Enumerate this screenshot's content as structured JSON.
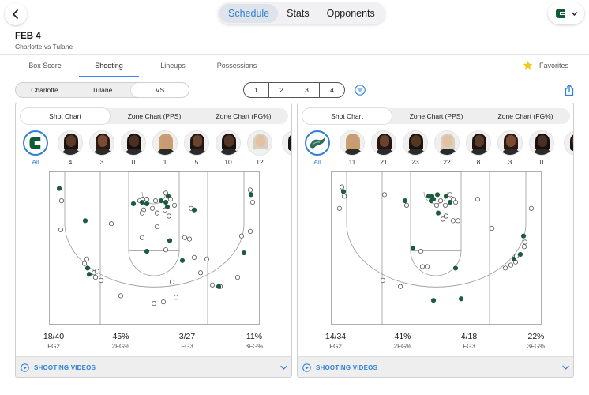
{
  "header": {
    "tabs": [
      {
        "label": "Schedule",
        "active": true
      },
      {
        "label": "Stats",
        "active": false
      },
      {
        "label": "Opponents",
        "active": false
      }
    ],
    "back_icon": "chevron-left-icon",
    "team_logo_icon": "charlotte-logo-icon",
    "team_menu_icon": "chevron-down-icon"
  },
  "game": {
    "date": "FEB 4",
    "matchup": "Charlotte vs Tulane"
  },
  "nav_tabs": [
    {
      "label": "Box Score",
      "active": false
    },
    {
      "label": "Shooting",
      "active": true
    },
    {
      "label": "Lineups",
      "active": false
    },
    {
      "label": "Possessions",
      "active": false
    }
  ],
  "favorites_label": "Favorites",
  "team_toggle": [
    {
      "label": "Charlotte",
      "active": false
    },
    {
      "label": "Tulane",
      "active": false
    },
    {
      "label": "VS",
      "active": true
    }
  ],
  "periods": [
    "1",
    "2",
    "3",
    "4"
  ],
  "colors": {
    "accent": "#2f80d6",
    "made_shot": "#1f5c3f",
    "charlotte_green": "#0f5b36",
    "tulane_green": "#2b6b5a"
  },
  "panels": [
    {
      "team": "Charlotte",
      "chart_tabs": [
        {
          "label": "Shot Chart",
          "active": true
        },
        {
          "label": "Zone Chart (PPS)",
          "active": false
        },
        {
          "label": "Zone Chart (FG%)",
          "active": false
        }
      ],
      "all_label": "All",
      "players": [
        "4",
        "3",
        "0",
        "1",
        "5",
        "10",
        "12"
      ],
      "stats": [
        {
          "value": "18/40",
          "label": "FG2"
        },
        {
          "value": "45%",
          "label": "2FG%"
        },
        {
          "value": "3/27",
          "label": "FG3"
        },
        {
          "value": "11%",
          "label": "3FG%"
        }
      ],
      "videos_label": "SHOOTING VIDEOS",
      "shots": [
        {
          "x": 3,
          "y": 7,
          "made": true
        },
        {
          "x": 6,
          "y": 15,
          "made": false
        },
        {
          "x": 5,
          "y": 34,
          "made": false
        },
        {
          "x": 36,
          "y": 28,
          "made": true
        },
        {
          "x": 69,
          "y": 30,
          "made": false
        },
        {
          "x": 38,
          "y": 53,
          "made": false
        },
        {
          "x": 35,
          "y": 56,
          "made": false
        },
        {
          "x": 39,
          "y": 59,
          "made": true
        },
        {
          "x": 41,
          "y": 63,
          "made": true
        },
        {
          "x": 47,
          "y": 62,
          "made": false
        },
        {
          "x": 51,
          "y": 61,
          "made": false
        },
        {
          "x": 49,
          "y": 65,
          "made": false
        },
        {
          "x": 56,
          "y": 67,
          "made": false
        },
        {
          "x": 81,
          "y": 77,
          "made": false
        },
        {
          "x": 97,
          "y": 17,
          "made": true
        },
        {
          "x": 105,
          "y": 15,
          "made": false
        },
        {
          "x": 109,
          "y": 14,
          "made": false
        },
        {
          "x": 114,
          "y": 14,
          "made": false
        },
        {
          "x": 108,
          "y": 16,
          "made": true
        },
        {
          "x": 114,
          "y": 17,
          "made": true
        },
        {
          "x": 125,
          "y": 15,
          "made": false
        },
        {
          "x": 132,
          "y": 15,
          "made": true
        },
        {
          "x": 138,
          "y": 10,
          "made": false
        },
        {
          "x": 141,
          "y": 12,
          "made": true
        },
        {
          "x": 144,
          "y": 14,
          "made": false
        },
        {
          "x": 138,
          "y": 16,
          "made": true
        },
        {
          "x": 140,
          "y": 19,
          "made": true
        },
        {
          "x": 137,
          "y": 21,
          "made": false
        },
        {
          "x": 149,
          "y": 18,
          "made": false
        },
        {
          "x": 110,
          "y": 21,
          "made": false
        },
        {
          "x": 108,
          "y": 23,
          "made": false
        },
        {
          "x": 121,
          "y": 20,
          "made": false
        },
        {
          "x": 127,
          "y": 23,
          "made": false
        },
        {
          "x": 142,
          "y": 25,
          "made": false
        },
        {
          "x": 108,
          "y": 39,
          "made": false
        },
        {
          "x": 114,
          "y": 48,
          "made": true
        },
        {
          "x": 127,
          "y": 32,
          "made": false
        },
        {
          "x": 143,
          "y": 41,
          "made": true
        },
        {
          "x": 138,
          "y": 47,
          "made": false
        },
        {
          "x": 162,
          "y": 39,
          "made": false
        },
        {
          "x": 168,
          "y": 40,
          "made": false
        },
        {
          "x": 170,
          "y": 20,
          "made": false
        },
        {
          "x": 174,
          "y": 21,
          "made": true
        },
        {
          "x": 159,
          "y": 54,
          "made": true
        },
        {
          "x": 174,
          "y": 52,
          "made": false
        },
        {
          "x": 182,
          "y": 62,
          "made": false
        },
        {
          "x": 190,
          "y": 53,
          "made": false
        },
        {
          "x": 197,
          "y": 70,
          "made": false
        },
        {
          "x": 207,
          "y": 71,
          "made": false
        },
        {
          "x": 205,
          "y": 71,
          "made": true
        },
        {
          "x": 229,
          "y": 65,
          "made": false
        },
        {
          "x": 237,
          "y": 49,
          "made": true
        },
        {
          "x": 245,
          "y": 35,
          "made": false
        },
        {
          "x": 248,
          "y": 16,
          "made": false
        },
        {
          "x": 246,
          "y": 11,
          "made": true
        },
        {
          "x": 245,
          "y": 8,
          "made": false
        },
        {
          "x": 234,
          "y": 38,
          "made": false
        },
        {
          "x": 146,
          "y": 68,
          "made": false
        },
        {
          "x": 135,
          "y": 81,
          "made": false
        },
        {
          "x": 123,
          "y": 82,
          "made": false
        },
        {
          "x": 151,
          "y": 78,
          "made": false
        }
      ]
    },
    {
      "team": "Tulane",
      "chart_tabs": [
        {
          "label": "Shot Chart",
          "active": true
        },
        {
          "label": "Zone Chart (PPS)",
          "active": false
        },
        {
          "label": "Zone Chart (FG%)",
          "active": false
        }
      ],
      "all_label": "All",
      "players": [
        "11",
        "21",
        "23",
        "22",
        "8",
        "3",
        "0"
      ],
      "stats": [
        {
          "value": "14/34",
          "label": "FG2"
        },
        {
          "value": "41%",
          "label": "2FG%"
        },
        {
          "value": "4/18",
          "label": "FG3"
        },
        {
          "value": "22%",
          "label": "3FG%"
        }
      ],
      "videos_label": "SHOOTING VIDEOS",
      "shots": [
        {
          "x": 4,
          "y": 6,
          "made": false
        },
        {
          "x": 6,
          "y": 9,
          "made": true
        },
        {
          "x": 7,
          "y": 12,
          "made": false
        },
        {
          "x": 1,
          "y": 20,
          "made": false
        },
        {
          "x": 58,
          "y": 11,
          "made": false
        },
        {
          "x": 84,
          "y": 15,
          "made": true
        },
        {
          "x": 86,
          "y": 18,
          "made": false
        },
        {
          "x": 118,
          "y": 12,
          "made": true
        },
        {
          "x": 114,
          "y": 12,
          "made": true
        },
        {
          "x": 117,
          "y": 15,
          "made": true
        },
        {
          "x": 120,
          "y": 14,
          "made": true
        },
        {
          "x": 125,
          "y": 11,
          "made": true
        },
        {
          "x": 129,
          "y": 15,
          "made": false
        },
        {
          "x": 136,
          "y": 12,
          "made": true
        },
        {
          "x": 141,
          "y": 16,
          "made": true
        },
        {
          "x": 141,
          "y": 11,
          "made": false
        },
        {
          "x": 145,
          "y": 14,
          "made": false
        },
        {
          "x": 148,
          "y": 16,
          "made": false
        },
        {
          "x": 135,
          "y": 18,
          "made": false
        },
        {
          "x": 124,
          "y": 18,
          "made": false
        },
        {
          "x": 126,
          "y": 23,
          "made": true
        },
        {
          "x": 136,
          "y": 25,
          "made": false
        },
        {
          "x": 132,
          "y": 27,
          "made": false
        },
        {
          "x": 176,
          "y": 14,
          "made": false
        },
        {
          "x": 244,
          "y": 20,
          "made": false
        },
        {
          "x": 194,
          "y": 33,
          "made": false
        },
        {
          "x": 145,
          "y": 28,
          "made": false
        },
        {
          "x": 151,
          "y": 28,
          "made": false
        },
        {
          "x": 94,
          "y": 46,
          "made": true
        },
        {
          "x": 104,
          "y": 48,
          "made": false
        },
        {
          "x": 106,
          "y": 58,
          "made": false
        },
        {
          "x": 112,
          "y": 58,
          "made": false
        },
        {
          "x": 148,
          "y": 59,
          "made": true
        },
        {
          "x": 56,
          "y": 67,
          "made": false
        },
        {
          "x": 78,
          "y": 71,
          "made": false
        },
        {
          "x": 120,
          "y": 80,
          "made": true
        },
        {
          "x": 155,
          "y": 79,
          "made": true
        },
        {
          "x": 211,
          "y": 59,
          "made": false
        },
        {
          "x": 218,
          "y": 57,
          "made": false
        },
        {
          "x": 224,
          "y": 55,
          "made": false
        },
        {
          "x": 222,
          "y": 53,
          "made": true
        },
        {
          "x": 225,
          "y": 51,
          "made": false
        },
        {
          "x": 230,
          "y": 50,
          "made": true
        },
        {
          "x": 235,
          "y": 45,
          "made": false
        },
        {
          "x": 236,
          "y": 42,
          "made": false
        },
        {
          "x": 234,
          "y": 38,
          "made": true
        }
      ]
    }
  ]
}
